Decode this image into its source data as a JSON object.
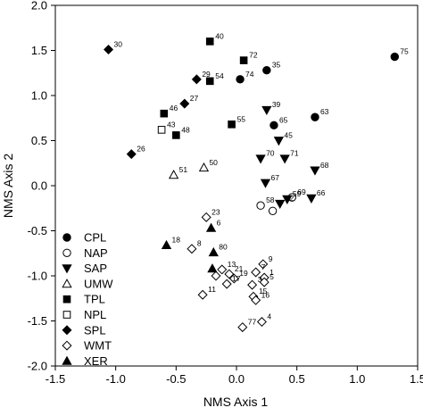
{
  "chart_data": {
    "type": "scatter",
    "title": "",
    "xlabel": "NMS Axis 1",
    "ylabel": "NMS Axis 2",
    "xlim": [
      -1.5,
      1.5
    ],
    "ylim": [
      -2.0,
      2.0
    ],
    "xticks": [
      -1.5,
      -1.0,
      -0.5,
      0.0,
      0.5,
      1.0,
      1.5
    ],
    "yticks": [
      -2.0,
      -1.5,
      -1.0,
      -0.5,
      0.0,
      0.5,
      1.0,
      1.5,
      2.0
    ],
    "tick_labels_x": [
      "-1.5",
      "-1.0",
      "-0.5",
      "0.0",
      "0.5",
      "1.0",
      "1.5"
    ],
    "tick_labels_y": [
      "-2.0",
      "-1.5",
      "-1.0",
      "-0.5",
      "0.0",
      "0.5",
      "1.0",
      "1.5",
      "2.0"
    ],
    "grid": false,
    "legend_position": "bottom-left",
    "series": [
      {
        "name": "CPL",
        "marker": "circle-filled",
        "points": [
          {
            "label": "75",
            "x": 1.31,
            "y": 1.43
          },
          {
            "label": "35",
            "x": 0.25,
            "y": 1.28
          },
          {
            "label": "74",
            "x": 0.03,
            "y": 1.18
          },
          {
            "label": "63",
            "x": 0.65,
            "y": 0.76
          },
          {
            "label": "65",
            "x": 0.31,
            "y": 0.67
          }
        ]
      },
      {
        "name": "NAP",
        "marker": "circle-open",
        "points": [
          {
            "label": "58",
            "x": 0.2,
            "y": -0.22
          },
          {
            "label": "",
            "x": 0.3,
            "y": -0.28
          },
          {
            "label": "69",
            "x": 0.46,
            "y": -0.13
          }
        ]
      },
      {
        "name": "SAP",
        "marker": "triangle-down-filled",
        "points": [
          {
            "label": "39",
            "x": 0.25,
            "y": 0.84
          },
          {
            "label": "45",
            "x": 0.35,
            "y": 0.5
          },
          {
            "label": "70",
            "x": 0.2,
            "y": 0.3
          },
          {
            "label": "71",
            "x": 0.4,
            "y": 0.3
          },
          {
            "label": "68",
            "x": 0.65,
            "y": 0.17
          },
          {
            "label": "67",
            "x": 0.24,
            "y": 0.03
          },
          {
            "label": "66",
            "x": 0.62,
            "y": -0.14
          },
          {
            "label": "59",
            "x": 0.42,
            "y": -0.15
          },
          {
            "label": "62",
            "x": 0.36,
            "y": -0.2
          }
        ]
      },
      {
        "name": "UMW",
        "marker": "triangle-up-open",
        "points": [
          {
            "label": "51",
            "x": -0.52,
            "y": 0.12
          },
          {
            "label": "50",
            "x": -0.27,
            "y": 0.2
          }
        ]
      },
      {
        "name": "TPL",
        "marker": "square-filled",
        "points": [
          {
            "label": "40",
            "x": -0.22,
            "y": 1.6
          },
          {
            "label": "72",
            "x": 0.06,
            "y": 1.39
          },
          {
            "label": "54",
            "x": -0.22,
            "y": 1.16
          },
          {
            "label": "46",
            "x": -0.6,
            "y": 0.8
          },
          {
            "label": "55",
            "x": -0.04,
            "y": 0.68
          },
          {
            "label": "48",
            "x": -0.5,
            "y": 0.56
          }
        ]
      },
      {
        "name": "NPL",
        "marker": "square-open",
        "points": [
          {
            "label": "43",
            "x": -0.62,
            "y": 0.62
          }
        ]
      },
      {
        "name": "SPL",
        "marker": "diamond-filled",
        "points": [
          {
            "label": "30",
            "x": -1.06,
            "y": 1.51
          },
          {
            "label": "29",
            "x": -0.33,
            "y": 1.18
          },
          {
            "label": "27",
            "x": -0.43,
            "y": 0.91
          },
          {
            "label": "26",
            "x": -0.87,
            "y": 0.35
          }
        ]
      },
      {
        "name": "WMT",
        "marker": "diamond-open",
        "points": [
          {
            "label": "23",
            "x": -0.25,
            "y": -0.35
          },
          {
            "label": "8",
            "x": -0.37,
            "y": -0.7
          },
          {
            "label": "",
            "x": -0.17,
            "y": -1.0
          },
          {
            "label": "13",
            "x": -0.12,
            "y": -0.93
          },
          {
            "label": "21",
            "x": -0.06,
            "y": -0.98
          },
          {
            "label": "19",
            "x": -0.02,
            "y": -1.03
          },
          {
            "label": "17",
            "x": -0.08,
            "y": -1.09
          },
          {
            "label": "11",
            "x": -0.28,
            "y": -1.21
          },
          {
            "label": "7",
            "x": 0.16,
            "y": -0.96
          },
          {
            "label": "9",
            "x": 0.22,
            "y": -0.87
          },
          {
            "label": "1",
            "x": 0.23,
            "y": -1.02
          },
          {
            "label": "5",
            "x": 0.23,
            "y": -1.07
          },
          {
            "label": "3",
            "x": 0.13,
            "y": -1.1
          },
          {
            "label": "15",
            "x": 0.14,
            "y": -1.23
          },
          {
            "label": "16",
            "x": 0.16,
            "y": -1.27
          },
          {
            "label": "77",
            "x": 0.05,
            "y": -1.57
          },
          {
            "label": "4",
            "x": 0.21,
            "y": -1.51
          }
        ]
      },
      {
        "name": "XER",
        "marker": "triangle-up-filled",
        "points": [
          {
            "label": "18",
            "x": -0.58,
            "y": -0.66
          },
          {
            "label": "6",
            "x": -0.21,
            "y": -0.47
          },
          {
            "label": "80",
            "x": -0.19,
            "y": -0.74
          },
          {
            "label": "",
            "x": -0.2,
            "y": -0.92
          }
        ]
      }
    ]
  }
}
